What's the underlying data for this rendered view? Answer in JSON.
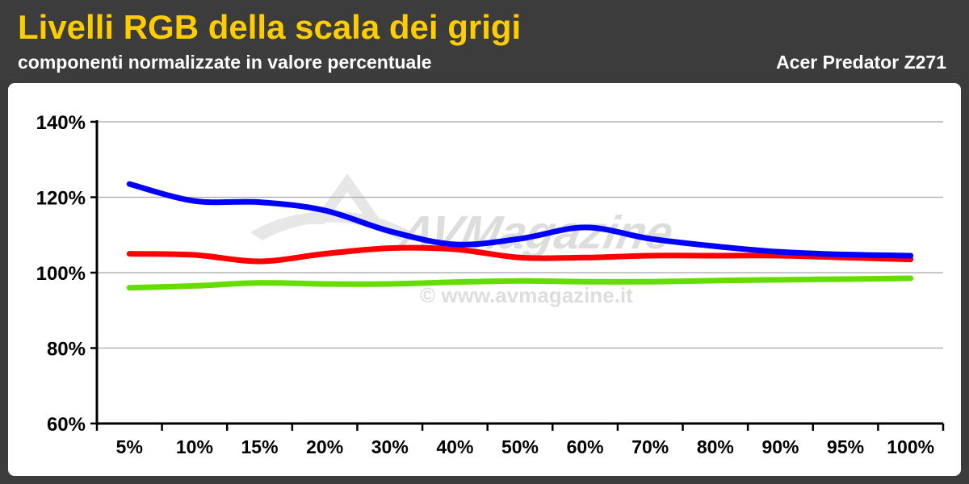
{
  "header": {
    "title": "Livelli RGB della scala dei grigi",
    "subtitle": "componenti normalizzate in valore percentuale",
    "model": "Acer Predator Z271"
  },
  "watermark": {
    "logo_text": "AVMagazine",
    "url": "© www.avmagazine.it"
  },
  "chart_data": {
    "type": "line",
    "categories": [
      "5%",
      "10%",
      "15%",
      "20%",
      "30%",
      "40%",
      "50%",
      "60%",
      "70%",
      "80%",
      "90%",
      "95%",
      "100%"
    ],
    "y_ticks": [
      "60%",
      "80%",
      "100%",
      "120%",
      "140%"
    ],
    "ylim": [
      60,
      140
    ],
    "grid": true,
    "series": [
      {
        "color": "#0000ff",
        "values": [
          123.5,
          119,
          118.7,
          116.5,
          111,
          107.5,
          109,
          112,
          109,
          107,
          105.5,
          104.8,
          104.5
        ]
      },
      {
        "color": "#ff0000",
        "values": [
          105,
          104.7,
          103,
          105,
          106.5,
          106.2,
          104,
          104,
          104.5,
          104.5,
          104.5,
          104,
          103.5
        ]
      },
      {
        "color": "#66dd00",
        "values": [
          96,
          96.5,
          97.3,
          97,
          97,
          97.5,
          97.8,
          97.6,
          97.6,
          97.9,
          98.1,
          98.3,
          98.5
        ]
      }
    ]
  }
}
